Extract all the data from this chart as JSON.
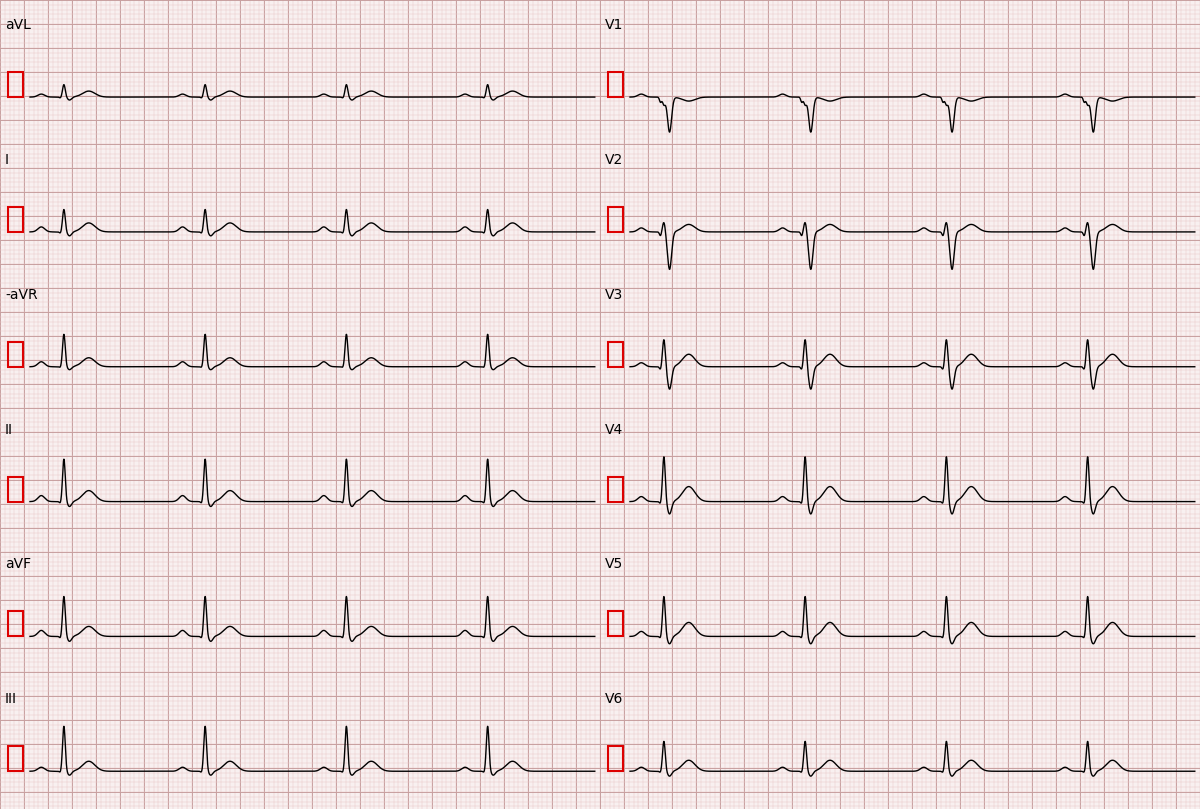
{
  "leads_left": [
    "aVL",
    "I",
    "-aVR",
    "II",
    "aVF",
    "III"
  ],
  "leads_right": [
    "V1",
    "V2",
    "V3",
    "V4",
    "V5",
    "V6"
  ],
  "background_color": "#f8f0f0",
  "grid_minor_color": "#e8c8c8",
  "grid_major_color": "#c8a0a0",
  "ecg_color": "#000000",
  "cal_color": "#dd0000",
  "label_color": "#000000",
  "fig_width": 12.0,
  "fig_height": 8.09,
  "dpi": 100,
  "num_beats": 4,
  "beat_period": 1.25,
  "lead_params": {
    "aVL": {
      "r": 0.25,
      "p": 0.06,
      "q": -0.02,
      "s": -0.06,
      "t": 0.12,
      "neg_r": false,
      "big_s": false
    },
    "I": {
      "r": 0.45,
      "p": 0.1,
      "q": -0.03,
      "s": -0.08,
      "t": 0.18,
      "neg_r": false,
      "big_s": false
    },
    "-aVR": {
      "r": 0.65,
      "p": 0.1,
      "q": -0.02,
      "s": -0.06,
      "t": 0.18,
      "neg_r": false,
      "big_s": false
    },
    "II": {
      "r": 0.85,
      "p": 0.12,
      "q": -0.04,
      "s": -0.1,
      "t": 0.22,
      "neg_r": false,
      "big_s": false
    },
    "aVF": {
      "r": 0.8,
      "p": 0.12,
      "q": -0.04,
      "s": -0.1,
      "t": 0.2,
      "neg_r": false,
      "big_s": false
    },
    "III": {
      "r": 0.9,
      "p": 0.08,
      "q": -0.03,
      "s": -0.08,
      "t": 0.2,
      "neg_r": false,
      "big_s": false
    },
    "V1": {
      "r": 0.15,
      "p": 0.06,
      "q": -0.1,
      "s": -0.7,
      "t": -0.08,
      "neg_r": true,
      "big_s": true
    },
    "V2": {
      "r": 0.2,
      "p": 0.08,
      "q": -0.08,
      "s": -0.75,
      "t": 0.15,
      "neg_r": false,
      "big_s": true
    },
    "V3": {
      "r": 0.55,
      "p": 0.08,
      "q": -0.06,
      "s": -0.45,
      "t": 0.25,
      "neg_r": false,
      "big_s": false
    },
    "V4": {
      "r": 0.9,
      "p": 0.1,
      "q": -0.05,
      "s": -0.25,
      "t": 0.3,
      "neg_r": false,
      "big_s": false
    },
    "V5": {
      "r": 0.8,
      "p": 0.1,
      "q": -0.04,
      "s": -0.15,
      "t": 0.28,
      "neg_r": false,
      "big_s": false
    },
    "V6": {
      "r": 0.6,
      "p": 0.08,
      "q": -0.03,
      "s": -0.1,
      "t": 0.22,
      "neg_r": false,
      "big_s": false
    }
  }
}
